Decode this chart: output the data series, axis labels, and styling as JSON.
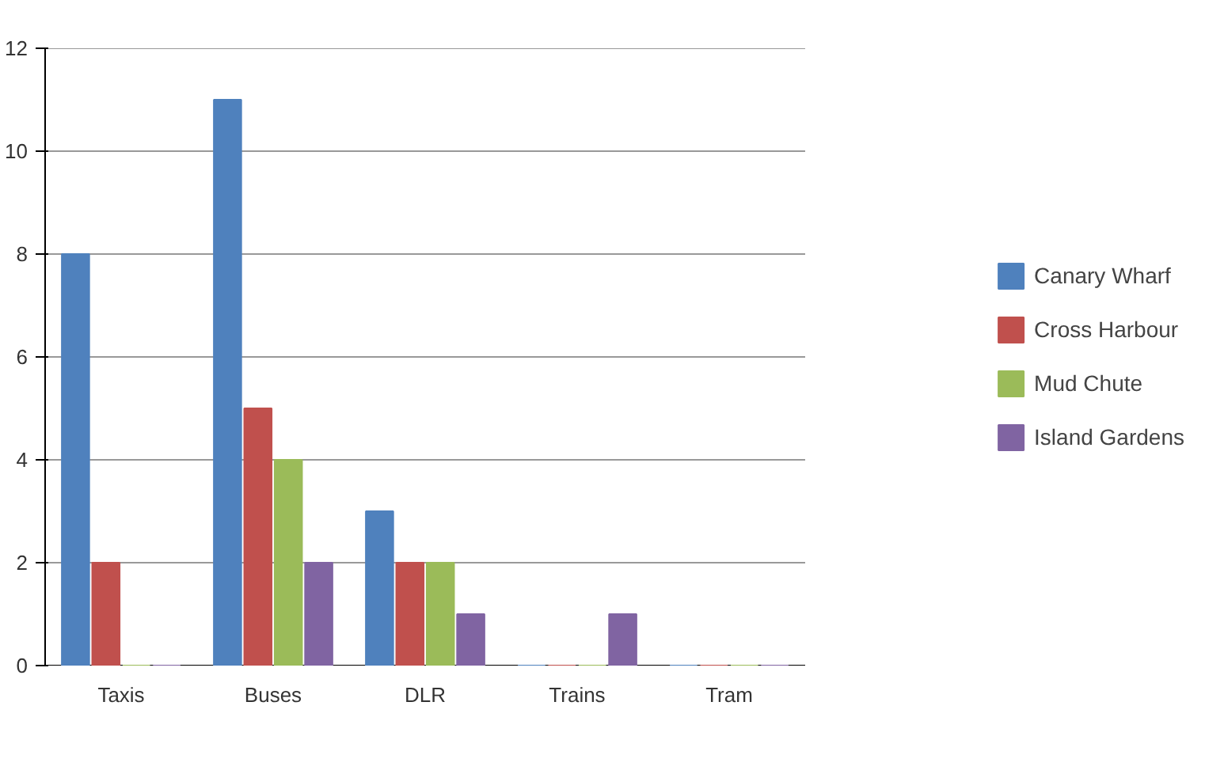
{
  "chart_data": {
    "type": "bar",
    "categories": [
      "Taxis",
      "Buses",
      "DLR",
      "Trains",
      "Tram"
    ],
    "series": [
      {
        "name": "Canary Wharf",
        "color": "#4f81bd",
        "values": [
          8,
          11,
          3,
          0,
          0
        ]
      },
      {
        "name": "Cross Harbour",
        "color": "#c0504d",
        "values": [
          2,
          5,
          2,
          0,
          0
        ]
      },
      {
        "name": "Mud Chute",
        "color": "#9bbb59",
        "values": [
          0,
          4,
          2,
          0,
          0
        ]
      },
      {
        "name": "Island Gardens",
        "color": "#8064a2",
        "values": [
          0,
          2,
          1,
          1,
          0
        ]
      }
    ],
    "ylim": [
      0,
      12
    ],
    "yticks": [
      0,
      2,
      4,
      6,
      8,
      10,
      12
    ],
    "grid": "y",
    "legend": "right"
  }
}
